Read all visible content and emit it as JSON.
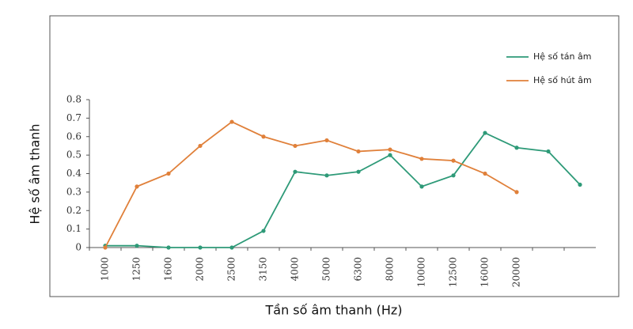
{
  "chart_data": {
    "type": "line",
    "xlabel": "Tần số âm thanh (Hz)",
    "ylabel": "Hệ số âm thanh",
    "categories": [
      "1000",
      "1250",
      "1600",
      "2000",
      "2500",
      "3150",
      "4000",
      "5000",
      "6300",
      "8000",
      "10000",
      "12500",
      "16000",
      "20000",
      null,
      null
    ],
    "series": [
      {
        "name": "Hệ số tán âm",
        "color": "#2e9a78",
        "values": [
          0.01,
          0.01,
          0,
          0,
          0,
          0.09,
          0.41,
          0.39,
          0.41,
          0.5,
          0.33,
          0.39,
          0.62,
          0.54,
          0.52,
          0.34
        ]
      },
      {
        "name": "Hệ số hút âm",
        "color": "#e0803a",
        "values": [
          0,
          0.33,
          0.4,
          0.55,
          0.68,
          0.6,
          0.55,
          0.58,
          0.52,
          0.53,
          0.48,
          0.47,
          0.4,
          0.3,
          null,
          null
        ]
      }
    ],
    "ylim": [
      0,
      0.8
    ],
    "yticks": [
      0,
      0.1,
      0.2,
      0.3,
      0.4,
      0.5,
      0.6,
      0.7,
      0.8
    ],
    "legend": "upper right"
  }
}
